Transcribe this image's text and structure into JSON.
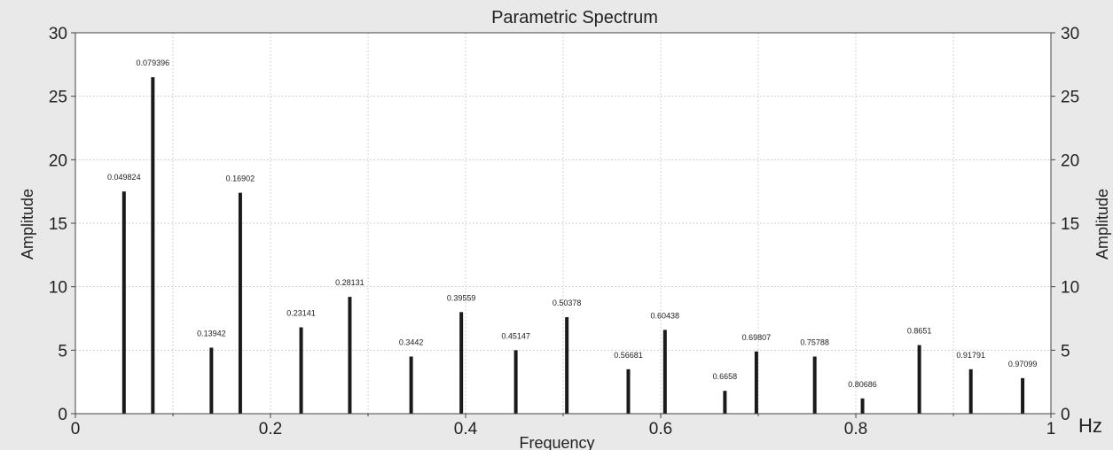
{
  "chart_data": {
    "type": "bar",
    "title": "Parametric Spectrum",
    "xlabel": "Frequency",
    "ylabel": "Amplitude",
    "ylabel_right": "Amplitude",
    "x_unit": "Hz",
    "xlim": [
      0,
      1
    ],
    "ylim": [
      0,
      30
    ],
    "x_ticks": [
      "0",
      "0.2",
      "0.4",
      "0.6",
      "0.8",
      "1"
    ],
    "y_ticks": [
      "0",
      "5",
      "10",
      "15",
      "20",
      "25",
      "30"
    ],
    "grid": true,
    "bar_color": "#1a1a1a",
    "background_color": "#ffffff",
    "frame_color": "#e9e9e9",
    "points": [
      {
        "x": 0.049824,
        "y": 17.5,
        "label": "0.049824"
      },
      {
        "x": 0.079396,
        "y": 26.5,
        "label": "0.079396"
      },
      {
        "x": 0.13942,
        "y": 5.2,
        "label": "0.13942"
      },
      {
        "x": 0.16902,
        "y": 17.4,
        "label": "0.16902"
      },
      {
        "x": 0.23141,
        "y": 6.8,
        "label": "0.23141"
      },
      {
        "x": 0.28131,
        "y": 9.2,
        "label": "0.28131"
      },
      {
        "x": 0.3442,
        "y": 4.5,
        "label": "0.3442"
      },
      {
        "x": 0.39559,
        "y": 8.0,
        "label": "0.39559"
      },
      {
        "x": 0.45147,
        "y": 5.0,
        "label": "0.45147"
      },
      {
        "x": 0.50378,
        "y": 7.6,
        "label": "0.50378"
      },
      {
        "x": 0.56681,
        "y": 3.5,
        "label": "0.56681"
      },
      {
        "x": 0.60438,
        "y": 6.6,
        "label": "0.60438"
      },
      {
        "x": 0.6658,
        "y": 1.8,
        "label": "0.6658"
      },
      {
        "x": 0.69807,
        "y": 4.9,
        "label": "0.69807"
      },
      {
        "x": 0.75788,
        "y": 4.5,
        "label": "0.75788"
      },
      {
        "x": 0.80686,
        "y": 1.2,
        "label": "0.80686"
      },
      {
        "x": 0.8651,
        "y": 5.4,
        "label": "0.8651"
      },
      {
        "x": 0.91791,
        "y": 3.5,
        "label": "0.91791"
      },
      {
        "x": 0.97099,
        "y": 2.8,
        "label": "0.97099"
      }
    ]
  }
}
